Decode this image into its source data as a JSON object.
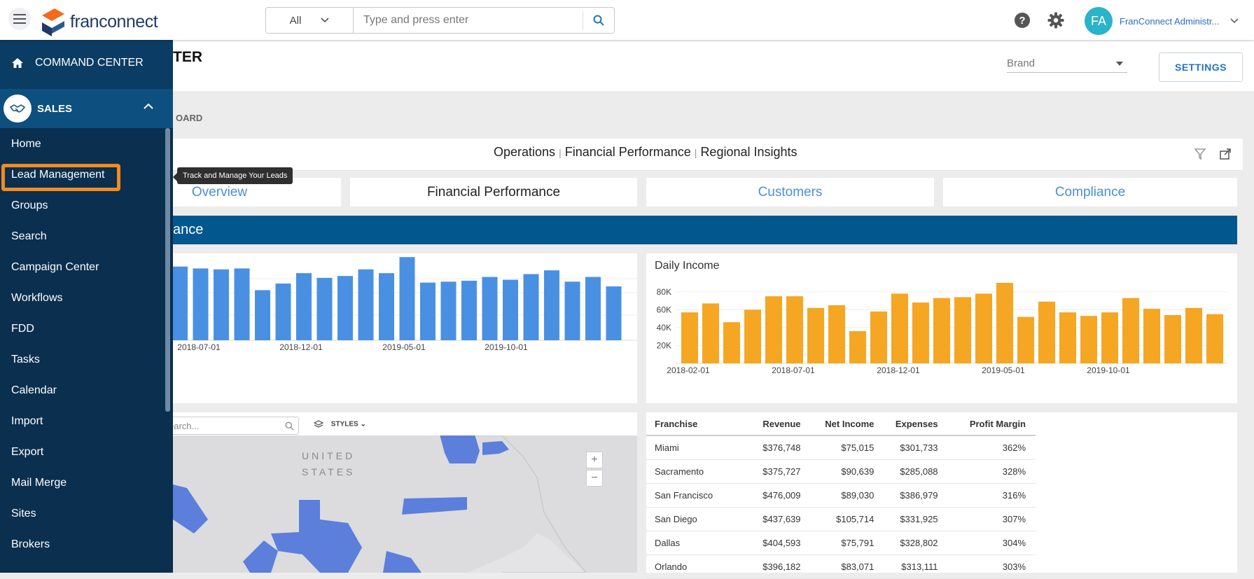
{
  "header": {
    "logo_text": "franconnect",
    "search": {
      "scope": "All",
      "placeholder": "Type and press enter"
    },
    "user": {
      "initials": "FA",
      "name": "FranConnect Administr..."
    }
  },
  "sidebar": {
    "command_center": "COMMAND CENTER",
    "section": "SALES",
    "items": [
      "Home",
      "Lead Management",
      "Groups",
      "Search",
      "Campaign Center",
      "Workflows",
      "FDD",
      "Tasks",
      "Calendar",
      "Import",
      "Export",
      "Mail Merge",
      "Sites",
      "Brokers"
    ],
    "tooltip": "Track and Manage Your Leads"
  },
  "page": {
    "title_fragment": "TER",
    "brand_select": "Brand",
    "settings_label": "SETTINGS",
    "dashboard_label_fragment": "OARD",
    "dashboard_tabs": [
      "Operations",
      "Financial Performance",
      "Regional Insights"
    ],
    "section_tabs": [
      "Overview",
      "Financial Performance",
      "Customers",
      "Compliance"
    ],
    "banner_fragment": "ance"
  },
  "colors": {
    "blue_bars": "#4a90e2",
    "orange_bars": "#f5a623",
    "banner": "#02588e",
    "highlight": "#f58a1f"
  },
  "chart_data": [
    {
      "type": "bar",
      "title": "",
      "x_ticks": [
        "2018-07-01",
        "2018-12-01",
        "2019-05-01",
        "2019-10-01"
      ],
      "values": [
        78,
        76,
        75,
        76,
        53,
        60,
        71,
        66,
        68,
        75,
        71,
        88,
        61,
        62,
        63,
        67,
        64,
        70,
        74,
        62,
        67,
        57
      ]
    },
    {
      "type": "bar",
      "title": "Daily Income",
      "y_ticks": [
        "20K",
        "40K",
        "60K",
        "80K"
      ],
      "ylim": [
        0,
        90000
      ],
      "x_ticks": [
        "2018-02-01",
        "2018-07-01",
        "2018-12-01",
        "2019-05-01",
        "2019-10-01"
      ],
      "values": [
        57000,
        67000,
        46000,
        60000,
        75000,
        75000,
        62000,
        65000,
        36000,
        58000,
        78000,
        68000,
        73000,
        74000,
        78000,
        90000,
        52000,
        69000,
        57000,
        53000,
        57000,
        73000,
        61000,
        54000,
        62000,
        55000
      ]
    }
  ],
  "map": {
    "search_placeholder": "earch...",
    "styles_label": "STYLES",
    "country_label_1": "UNITED",
    "country_label_2": "STATES",
    "zoom_in": "+",
    "zoom_out": "−"
  },
  "table": {
    "headers": [
      "Franchise",
      "Revenue",
      "Net Income",
      "Expenses",
      "Profit Margin"
    ],
    "rows": [
      [
        "Miami",
        "$376,748",
        "$75,015",
        "$301,733",
        "362%"
      ],
      [
        "Sacramento",
        "$375,727",
        "$90,639",
        "$285,088",
        "328%"
      ],
      [
        "San Francisco",
        "$476,009",
        "$89,030",
        "$386,979",
        "316%"
      ],
      [
        "San Diego",
        "$437,639",
        "$105,714",
        "$331,925",
        "307%"
      ],
      [
        "Dallas",
        "$404,593",
        "$75,791",
        "$328,802",
        "304%"
      ],
      [
        "Orlando",
        "$396,182",
        "$83,071",
        "$313,111",
        "303%"
      ]
    ]
  }
}
